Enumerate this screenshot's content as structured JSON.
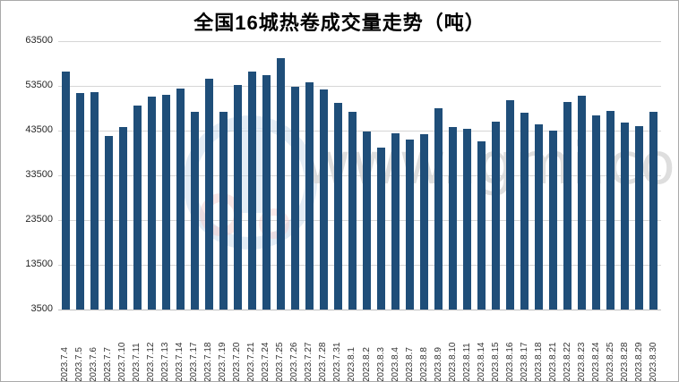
{
  "title": "全国16城热卷成交量走势（吨）",
  "watermark": {
    "site_text": "www.lgmi.com"
  },
  "chart_data": {
    "type": "bar",
    "title": "全国16城热卷成交量走势（吨）",
    "xlabel": "",
    "ylabel": "",
    "ylim": [
      3500,
      63500
    ],
    "yticks": [
      3500,
      13500,
      23500,
      33500,
      43500,
      53500,
      63500
    ],
    "grid": true,
    "legend_visible": false,
    "bar_color": "#1f4e79",
    "categories": [
      "2023.7.4",
      "2023.7.5",
      "2023.7.6",
      "2023.7.7",
      "2023.7.10",
      "2023.7.11",
      "2023.7.12",
      "2023.7.13",
      "2023.7.14",
      "2023.7.17",
      "2023.7.18",
      "2023.7.19",
      "2023.7.20",
      "2023.7.21",
      "2023.7.24",
      "2023.7.25",
      "2023.7.26",
      "2023.7.27",
      "2023.7.28",
      "2023.7.31",
      "2023.8.1",
      "2023.8.2",
      "2023.8.3",
      "2023.8.4",
      "2023.8.7",
      "2023.8.8",
      "2023.8.9",
      "2023.8.10",
      "2023.8.11",
      "2023.8.14",
      "2023.8.15",
      "2023.8.16",
      "2023.8.17",
      "2023.8.18",
      "2023.8.21",
      "2023.8.22",
      "2023.8.23",
      "2023.8.24",
      "2023.8.25",
      "2023.8.28",
      "2023.8.29",
      "2023.8.30"
    ],
    "values": [
      56800,
      52000,
      52200,
      42300,
      44400,
      49200,
      51200,
      51600,
      53000,
      47700,
      55200,
      47700,
      53800,
      56800,
      56000,
      59700,
      53400,
      54300,
      52800,
      49800,
      47700,
      43400,
      39700,
      42900,
      41600,
      42700,
      48500,
      44400,
      44000,
      41200,
      45600,
      50300,
      47600,
      45000,
      43600,
      50000,
      51300,
      47000,
      48000,
      45400,
      44600,
      47800
    ]
  }
}
